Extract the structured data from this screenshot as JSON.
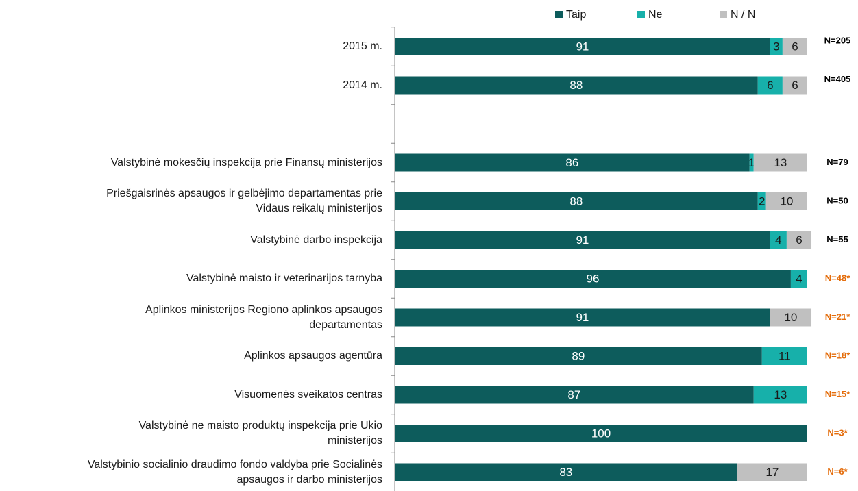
{
  "chart_data": {
    "type": "stacked_bar_horizontal",
    "categories": [
      "2015 m.",
      "2014 m.",
      null,
      "Valstybinė mokesčių inspekcija prie Finansų ministerijos",
      "Priešgaisrinės apsaugos ir gelbėjimo departamentas prie\nVidaus reikalų ministerijos",
      "Valstybinė darbo inspekcija",
      "Valstybinė maisto ir veterinarijos tarnyba",
      "Aplinkos ministerijos Regiono aplinkos apsaugos\ndepartamentas",
      "Aplinkos apsaugos agentūra",
      "Visuomenės sveikatos centras",
      "Valstybinė ne maisto produktų inspekcija prie Ūkio\nministerijos",
      "Valstybinio socialinio draudimo fondo valdyba prie Socialinės\napsaugos ir darbo ministerijos"
    ],
    "series": [
      {
        "name": "Taip",
        "color": "#0d5c5c",
        "label_color": "#ffffff",
        "values": [
          91,
          88,
          null,
          86,
          88,
          91,
          96,
          91,
          89,
          87,
          100,
          83
        ]
      },
      {
        "name": "Ne",
        "color": "#17b0aa",
        "label_color": "#1a1a1a",
        "values": [
          3,
          6,
          null,
          1,
          2,
          4,
          4,
          null,
          11,
          13,
          null,
          null
        ]
      },
      {
        "name": "N / N",
        "color": "#c0c0c0",
        "label_color": "#1a1a1a",
        "values": [
          6,
          6,
          null,
          13,
          10,
          6,
          null,
          10,
          null,
          null,
          null,
          17
        ]
      }
    ],
    "xlim": [
      0,
      100
    ],
    "annotations": [
      {
        "text": "N=205",
        "color": "#000000"
      },
      {
        "text": "N=405",
        "color": "#000000"
      },
      null,
      {
        "text": "N=79",
        "color": "#000000"
      },
      {
        "text": "N=50",
        "color": "#000000"
      },
      {
        "text": "N=55",
        "color": "#000000"
      },
      {
        "text": "N=48*",
        "color": "#e46c0a"
      },
      {
        "text": "N=21*",
        "color": "#e46c0a"
      },
      {
        "text": "N=18*",
        "color": "#e46c0a"
      },
      {
        "text": "N=15*",
        "color": "#e46c0a"
      },
      {
        "text": "N=3*",
        "color": "#e46c0a"
      },
      {
        "text": "N=6*",
        "color": "#e46c0a"
      }
    ],
    "legend": "top"
  }
}
